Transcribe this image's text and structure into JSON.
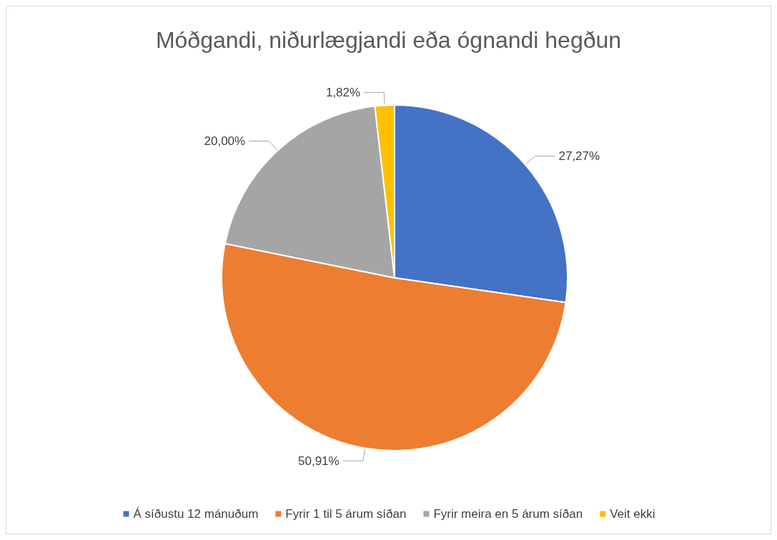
{
  "chart_data": {
    "type": "pie",
    "title": "Móðgandi, niðurlægjandi eða ógnandi hegðun",
    "categories": [
      "Á síðustu 12 mánuðum",
      "Fyrir 1 til 5 árum síðan",
      "Fyrir meira en 5 árum síðan",
      "Veit ekki"
    ],
    "values": [
      27.27,
      50.91,
      20.0,
      1.82
    ],
    "colors": [
      "#4472c4",
      "#ed7d31",
      "#a5a5a5",
      "#ffc000"
    ],
    "value_labels": [
      "27,27%",
      "50,91%",
      "20,00%",
      "1,82%"
    ],
    "legend": "bottom"
  }
}
